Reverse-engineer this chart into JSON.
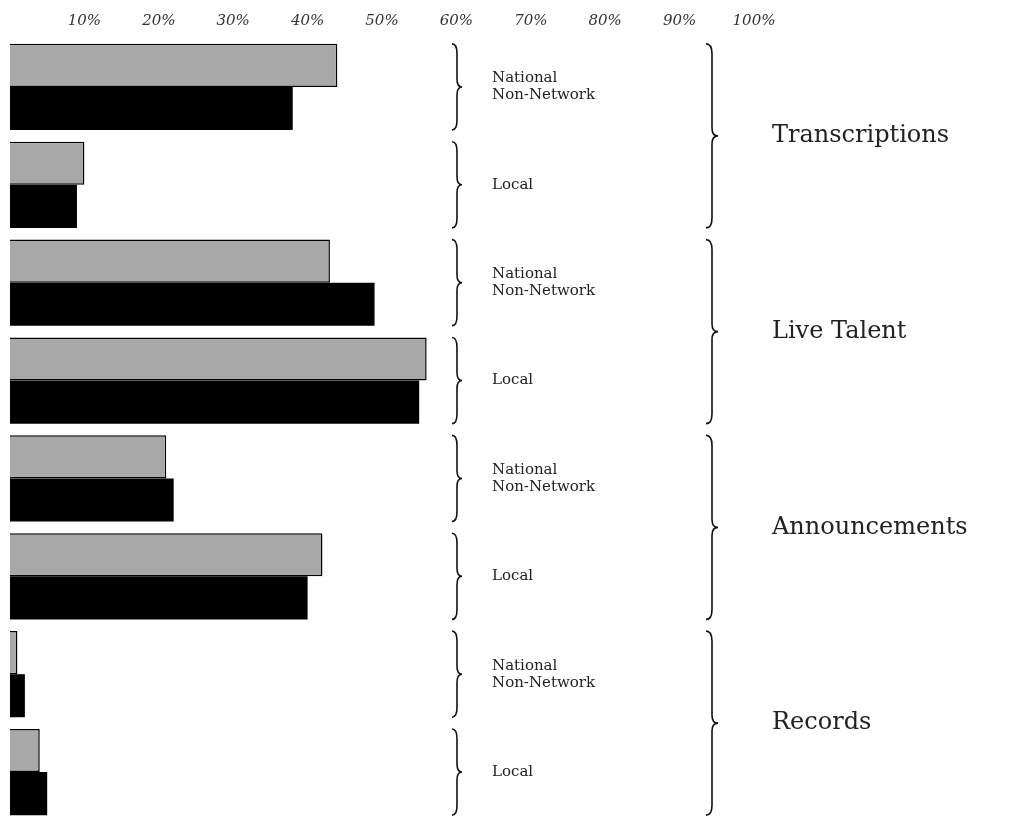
{
  "chart_data": {
    "type": "bar",
    "orientation": "horizontal",
    "categories": [
      "National Non-Network",
      "Local",
      "National Non-Network",
      "Local",
      "National Non-Network",
      "Local",
      "National Non-Network",
      "Local"
    ],
    "series": [
      {
        "color": "#a8a8a8",
        "values": [
          44,
          10,
          43,
          56,
          21,
          42,
          1,
          4
        ]
      },
      {
        "color": "#000000",
        "values": [
          38,
          9,
          49,
          55,
          22,
          40,
          2,
          5
        ]
      }
    ],
    "xlim": [
      0,
      100
    ],
    "xticks": [
      {
        "value": 10,
        "label": "10%"
      },
      {
        "value": 20,
        "label": "20%"
      },
      {
        "value": 30,
        "label": "30%"
      },
      {
        "value": 40,
        "label": "40%"
      },
      {
        "value": 50,
        "label": "50%"
      },
      {
        "value": 60,
        "label": "60%"
      },
      {
        "value": 70,
        "label": "70%"
      },
      {
        "value": 80,
        "label": "80%"
      },
      {
        "value": 90,
        "label": "90%"
      },
      {
        "value": 100,
        "label": "100%"
      }
    ],
    "grid": false,
    "legend": false,
    "annotations": [
      "Transcriptions",
      "Live Talent",
      "Announcements",
      "Records"
    ]
  }
}
